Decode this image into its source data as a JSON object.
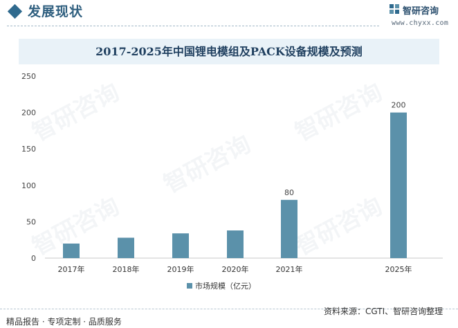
{
  "header": {
    "section_title": "发展现状",
    "brand_name": "智研咨询",
    "brand_url": "www.chyxx.com"
  },
  "colors": {
    "bar": "#5b91aa",
    "accent": "#2f6a8e"
  },
  "watermark": "智研咨询",
  "chart_data": {
    "type": "bar",
    "title": "2017-2025年中国锂电模组及PACK设备规模及预测",
    "categories": [
      "2017年",
      "2018年",
      "2019年",
      "2020年",
      "2021年",
      "2025年"
    ],
    "series": [
      {
        "name": "市场规模（亿元）",
        "values": [
          20,
          28,
          34,
          38,
          80,
          200
        ]
      }
    ],
    "data_labels": [
      "",
      "",
      "",
      "",
      "80",
      "200"
    ],
    "yticks": [
      "0",
      "50",
      "100",
      "150",
      "200",
      "250"
    ],
    "ylim": [
      0,
      250
    ],
    "grid": false,
    "legend": "bottom"
  },
  "footer": {
    "left": "精品报告 · 专项定制 · 品质服务",
    "right": "资料来源：CGTI、智研咨询整理"
  }
}
